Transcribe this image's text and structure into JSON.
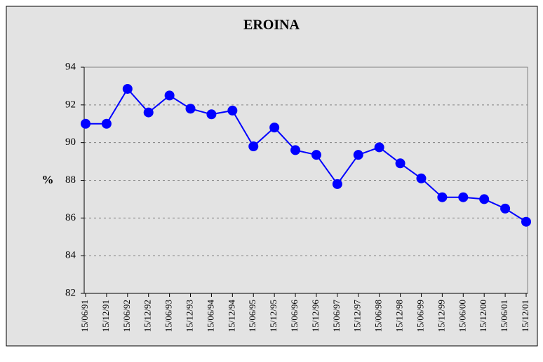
{
  "chart_data": {
    "type": "line",
    "title": "EROINA",
    "y_label": "%",
    "categories": [
      "15/06/91",
      "15/12/91",
      "15/06/92",
      "15/12/92",
      "15/06/93",
      "15/12/93",
      "15/06/94",
      "15/12/94",
      "15/06/95",
      "15/12/95",
      "15/06/96",
      "15/12/96",
      "15/06/97",
      "15/12/97",
      "15/06/98",
      "15/12/98",
      "15/06/99",
      "15/12/99",
      "15/06/00",
      "15/12/00",
      "15/06/01",
      "15/12/01"
    ],
    "series": [
      {
        "name": "EROINA",
        "color": "#0000ff",
        "values": [
          91.0,
          91.0,
          92.85,
          91.6,
          92.5,
          91.8,
          91.5,
          91.7,
          89.8,
          90.8,
          89.6,
          89.35,
          87.8,
          89.35,
          89.75,
          88.9,
          88.1,
          87.1,
          87.1,
          87.0,
          86.5,
          85.8
        ]
      }
    ],
    "ylim": [
      82,
      94
    ],
    "yticks": [
      82,
      84,
      86,
      88,
      90,
      92,
      94
    ],
    "grid": true
  }
}
